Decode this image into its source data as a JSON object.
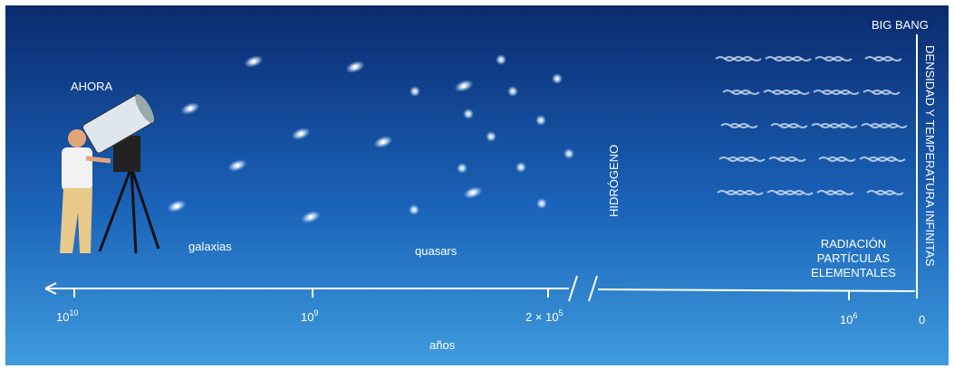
{
  "labels": {
    "big_bang": "BIG BANG",
    "infinite": "DENSIDAD Y TEMPERATURA INFINITAS",
    "now": "AHORA",
    "galaxies": "galaxias",
    "quasars": "quasars",
    "hydrogen": "HIDRÓGENO",
    "radiation": [
      "RADIACIÓN",
      "PARTÍCULAS",
      "ELEMENTALES"
    ]
  },
  "axis": {
    "title": "años",
    "ticks": [
      {
        "base": "10",
        "exp": "10"
      },
      {
        "base": "10",
        "exp": "9"
      },
      {
        "base": "2 × 10",
        "exp": "5"
      },
      {
        "base": "10",
        "exp": "6"
      },
      {
        "base": "0"
      }
    ]
  }
}
